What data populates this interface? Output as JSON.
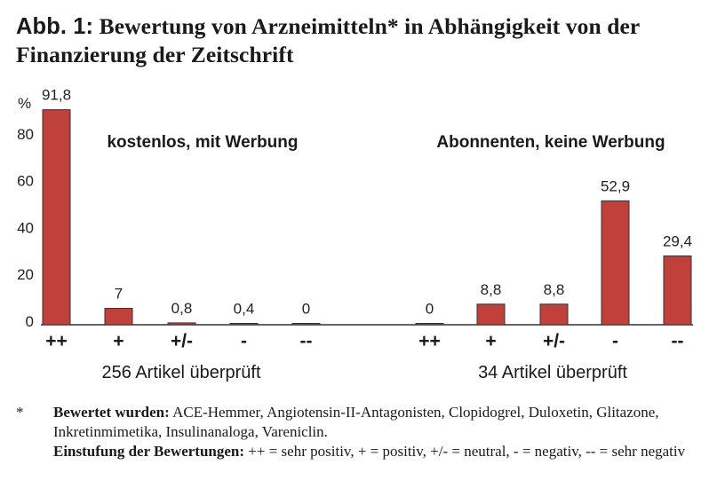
{
  "title": {
    "prefix": "Abb. 1:",
    "text": "Bewertung von Arzneimitteln* in Abhängigkeit von der Finanzierung der Zeitschrift"
  },
  "chart_data": {
    "type": "bar",
    "ylabel": "%",
    "ylim": [
      0,
      95
    ],
    "yticks": [
      "0",
      "20",
      "40",
      "60",
      "80"
    ],
    "bar_color": "#c0403b",
    "groups": [
      {
        "name": "kostenlos, mit Werbung",
        "caption": "256 Artikel überprüft",
        "categories": [
          "++",
          "+",
          "+/-",
          "-",
          "--"
        ],
        "values": [
          91.8,
          7,
          0.8,
          0.4,
          0
        ],
        "labels": [
          "91,8",
          "7",
          "0,8",
          "0,4",
          "0"
        ]
      },
      {
        "name": "Abonnenten, keine Werbung",
        "caption": "34 Artikel überprüft",
        "categories": [
          "++",
          "+",
          "+/-",
          "-",
          "--"
        ],
        "values": [
          0,
          8.8,
          8.8,
          52.9,
          29.4
        ],
        "labels": [
          "0",
          "8,8",
          "8,8",
          "52,9",
          "29,4"
        ]
      }
    ]
  },
  "footnote": {
    "marker": "*",
    "line1_bold": "Bewertet wurden:",
    "line1": " ACE-Hemmer, Angiotensin-II-Antagonisten, Clopidogrel, Duloxetin, Glitazone, Inkretinmimetika, Insulinanaloga, Vareniclin.",
    "line2_bold": "Einstufung der Bewertungen:",
    "line2": " ++ = sehr positiv, + = positiv, +/- = neutral, - = negativ, -- = sehr negativ"
  }
}
